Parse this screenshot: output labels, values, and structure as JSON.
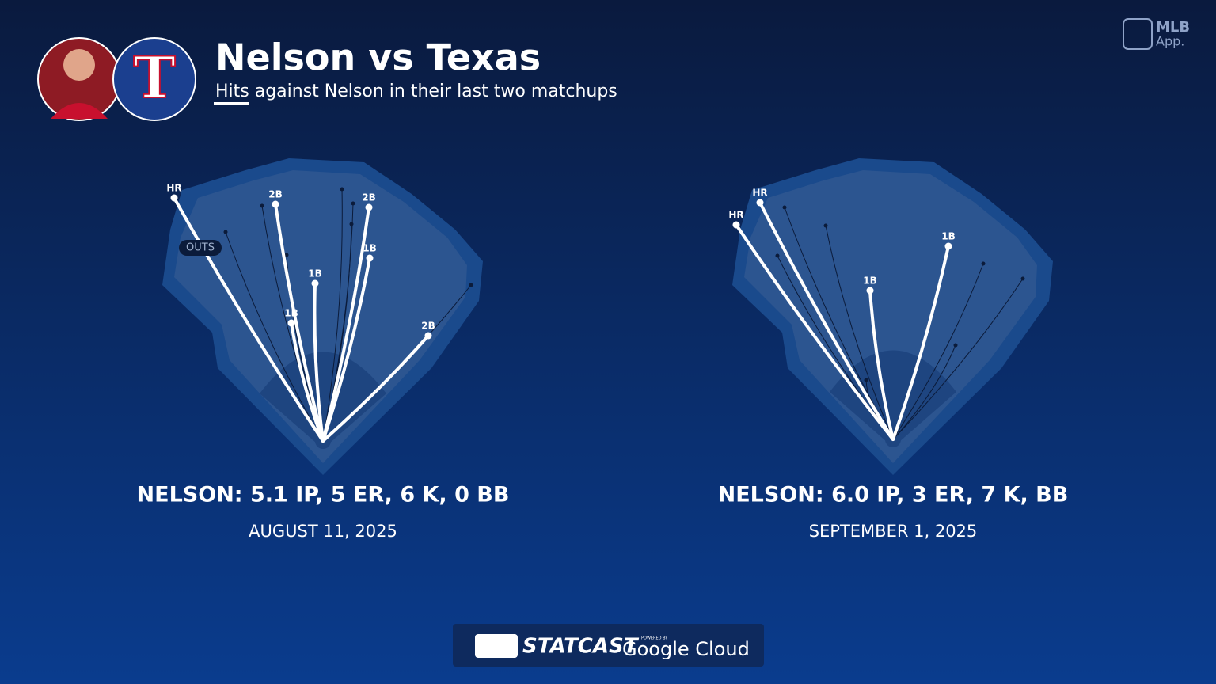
{
  "header": {
    "title": "Nelson vs Texas",
    "subtitle": "Hits against Nelson in their last two matchups",
    "team_logo": "T"
  },
  "brand": {
    "mlb": "MLB",
    "app": "App."
  },
  "games": [
    {
      "stats": "NELSON: 5.1 IP, 5 ER, 6 K, 0 BB",
      "date": "AUGUST 11, 2025",
      "outs_label": "OUTS",
      "hits": [
        "HR",
        "2B",
        "2B",
        "1B",
        "1B",
        "1B",
        "2B"
      ]
    },
    {
      "stats": "NELSON: 6.0 IP, 3 ER, 7 K, BB",
      "date": "SEPTEMBER 1, 2025",
      "hits": [
        "HR",
        "HR",
        "1B",
        "1B"
      ]
    }
  ],
  "footer": {
    "statcast": "STATCAST",
    "powered": "POWERED BY",
    "cloud": "Google Cloud"
  }
}
